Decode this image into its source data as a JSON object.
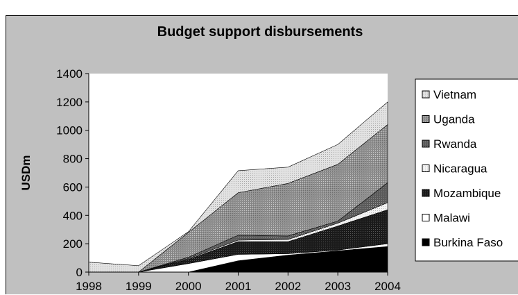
{
  "chart_data": {
    "type": "area",
    "stacked": true,
    "title": "Budget support disbursements",
    "ylabel": "USDm",
    "xlabel": "",
    "x": [
      "1998",
      "1999",
      "2000",
      "2001",
      "2002",
      "2003",
      "2004"
    ],
    "ylim": [
      0,
      1400
    ],
    "yticks": [
      0,
      200,
      400,
      600,
      800,
      1000,
      1200,
      1400
    ],
    "grid": false,
    "legend_position": "right",
    "series": [
      {
        "name": "Burkina Faso",
        "values": [
          0,
          0,
          0,
          80,
          120,
          150,
          180
        ],
        "color": "#000000",
        "fill": "solid"
      },
      {
        "name": "Malawi",
        "values": [
          0,
          0,
          60,
          45,
          10,
          5,
          20
        ],
        "color": "#ffffff",
        "fill": "solid"
      },
      {
        "name": "Mozambique",
        "values": [
          0,
          0,
          30,
          90,
          85,
          170,
          240
        ],
        "color": "#1a1a1a",
        "fill": "dots-dark"
      },
      {
        "name": "Nicaragua",
        "values": [
          0,
          0,
          5,
          10,
          15,
          20,
          50
        ],
        "color": "#f2f2f2",
        "fill": "dots-light"
      },
      {
        "name": "Rwanda",
        "values": [
          0,
          0,
          10,
          35,
          25,
          15,
          140
        ],
        "color": "#6a6a6a",
        "fill": "dots-mid"
      },
      {
        "name": "Uganda",
        "values": [
          0,
          0,
          175,
          300,
          370,
          400,
          410
        ],
        "color": "#9c9c9c",
        "fill": "dots-gray"
      },
      {
        "name": "Vietnam",
        "values": [
          70,
          45,
          5,
          155,
          115,
          140,
          160
        ],
        "color": "#dcdcdc",
        "fill": "dots-pale"
      }
    ]
  },
  "colors": {
    "chart_background": "#c0c0c0",
    "plot_background": "#ffffff",
    "legend_background": "#ffffff"
  }
}
